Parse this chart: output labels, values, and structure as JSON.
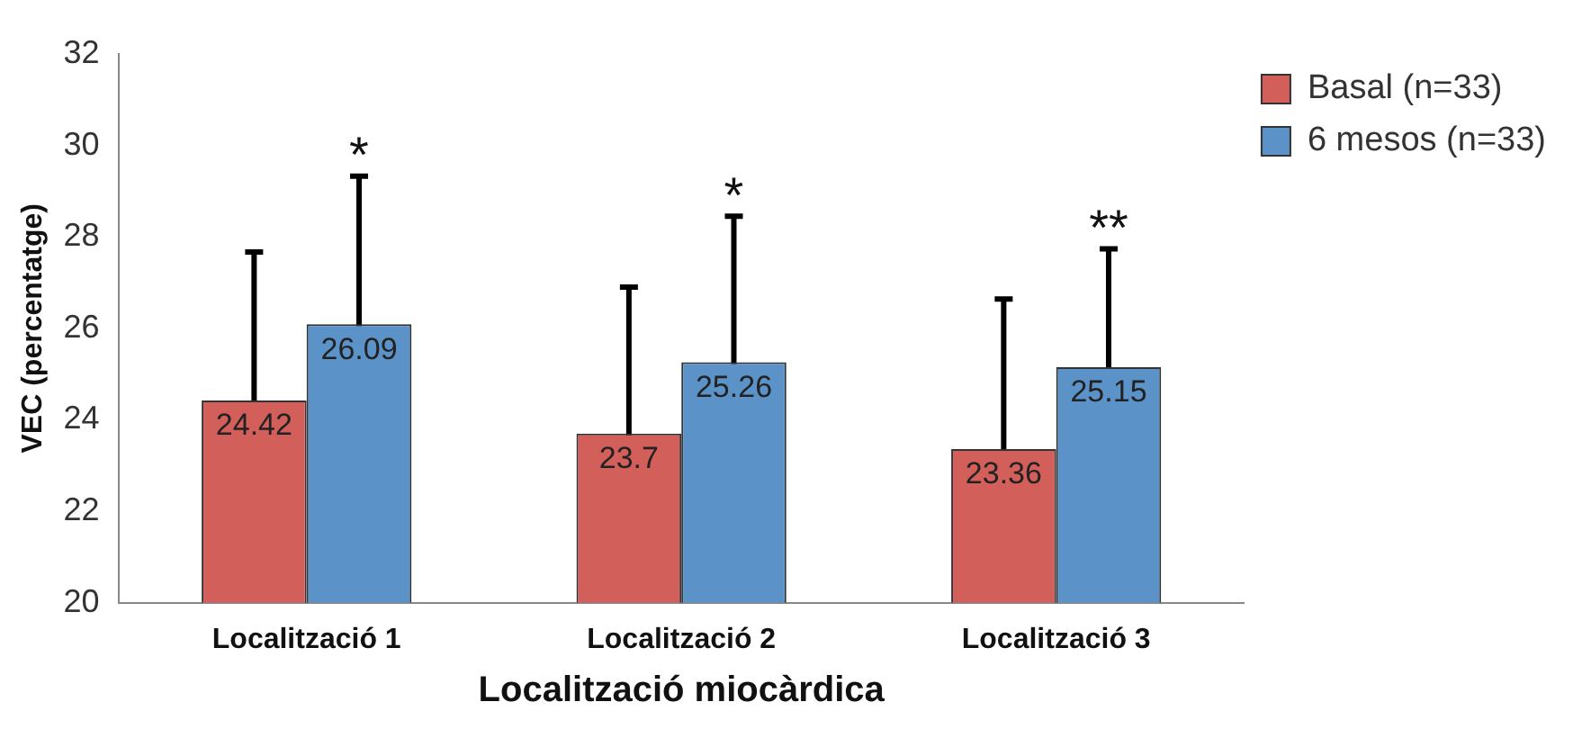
{
  "chart_data": {
    "type": "bar",
    "xlabel": "Localització miocàrdica",
    "ylabel": "VEC (percentatge)",
    "categories": [
      "Localització 1",
      "Localització 2",
      "Localització 3"
    ],
    "series": [
      {
        "name": "Basal (n=33)",
        "color": "#d35f5a",
        "values": [
          24.42,
          23.7,
          23.36
        ],
        "errors": [
          3.25,
          3.2,
          3.28
        ]
      },
      {
        "name": "6 mesos (n=33)",
        "color": "#5b93c8",
        "values": [
          26.09,
          25.26,
          25.15
        ],
        "errors": [
          3.24,
          3.19,
          2.59
        ]
      }
    ],
    "ylim": [
      20,
      32
    ],
    "yticks": [
      20,
      22,
      24,
      26,
      28,
      30,
      32
    ],
    "grid": false,
    "legend": "top right",
    "data_labels": true,
    "annotations": [
      "*",
      "*",
      "**"
    ]
  }
}
